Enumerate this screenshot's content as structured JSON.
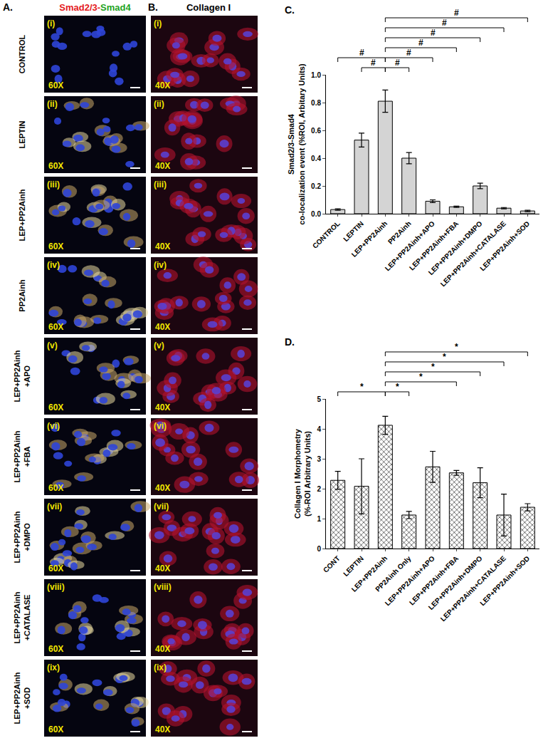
{
  "image_panels": {
    "A": {
      "label": "A.",
      "title": [
        {
          "text": "Smad2/3-",
          "color": "#e41a1c"
        },
        {
          "text": "Smad4",
          "color": "#1fa31f"
        }
      ],
      "magnification": "60X"
    },
    "B": {
      "label": "B.",
      "title": "Collagen I",
      "magnification": "40X"
    },
    "rows": [
      {
        "numeral": "(i)",
        "label": [
          "CONTROL"
        ]
      },
      {
        "numeral": "(ii)",
        "label": [
          "LEPTIN"
        ]
      },
      {
        "numeral": "(iii)",
        "label": [
          "LEP+PP2Ainh"
        ]
      },
      {
        "numeral": "(iv)",
        "label": [
          "PP2Ainh"
        ]
      },
      {
        "numeral": "(v)",
        "label": [
          "LEP+PP2Ainh",
          "+APO"
        ]
      },
      {
        "numeral": "(vi)",
        "label": [
          "LEP+PP2Ainh",
          "+FBA"
        ]
      },
      {
        "numeral": "(vii)",
        "label": [
          "LEP+PP2Ainh",
          "+DMPO"
        ]
      },
      {
        "numeral": "(viii)",
        "label": [
          "LEP+PP2Ainh",
          "+CATALASE"
        ]
      },
      {
        "numeral": "(ix)",
        "label": [
          "LEP+PP2Ainh",
          "+SOD"
        ]
      }
    ]
  },
  "chart_data": [
    {
      "type": "bar",
      "panel_label": "C.",
      "ylabel": [
        "Smad2/3-Smad4",
        "co-localization event (%ROI, Arbitary Units)"
      ],
      "categories": [
        "CONTROL",
        "LEPTIN",
        "LEP+PP2Ainh",
        "PP2Ainh",
        "LEP+PP2Ainh+APO",
        "LEP+PP2Ainh+FBA",
        "LEP+PP2Ainh+DMPO",
        "LEP+PP2Ainh+CATALASE",
        "LEP+PP2Ainh+SOD"
      ],
      "values": [
        0.03,
        0.53,
        0.81,
        0.4,
        0.09,
        0.05,
        0.2,
        0.04,
        0.02
      ],
      "error": [
        0.005,
        0.05,
        0.08,
        0.04,
        0.01,
        0.005,
        0.02,
        0.005,
        0.005
      ],
      "color": "#d4d4d4",
      "ylim": [
        0,
        1.0
      ],
      "yticks": [
        {
          "value": 0,
          "label": "0.0"
        },
        0.2,
        0.4,
        0.6,
        0.8,
        {
          "value": 1.0,
          "label": "1.0"
        }
      ],
      "grid": false,
      "comparisons": [
        {
          "from": "CONTROL",
          "to": "LEP+PP2Ainh",
          "label": "#"
        },
        {
          "from": "LEPTIN",
          "to": "LEP+PP2Ainh",
          "label": "#"
        },
        {
          "from": "LEP+PP2Ainh",
          "to": "PP2Ainh",
          "label": "#"
        },
        {
          "from": "LEP+PP2Ainh",
          "to": "LEP+PP2Ainh+APO",
          "label": "#"
        },
        {
          "from": "LEP+PP2Ainh",
          "to": "LEP+PP2Ainh+FBA",
          "label": "#"
        },
        {
          "from": "LEP+PP2Ainh",
          "to": "LEP+PP2Ainh+DMPO",
          "label": "#"
        },
        {
          "from": "LEP+PP2Ainh",
          "to": "LEP+PP2Ainh+CATALASE",
          "label": "#"
        },
        {
          "from": "LEP+PP2Ainh",
          "to": "LEP+PP2Ainh+SOD",
          "label": "#"
        }
      ]
    },
    {
      "type": "bar",
      "panel_label": "D.",
      "ylabel": [
        "Collagen I Morphometry",
        "(%-ROI Arbitrary Units)"
      ],
      "categories": [
        "CONT",
        "LEPTIN",
        "LEP+PP2Ainh",
        "PP2Ainh Only",
        "LEP+PP2Ainh+APO",
        "LEP+PP2Ainh+FBA",
        "LEP+PP2Ainh+DMPO",
        "LEP+PP2Ainh+CATALASE",
        "LEP+PP2Ainh+SOD"
      ],
      "values": [
        2.28,
        2.08,
        4.12,
        1.12,
        2.73,
        2.53,
        2.2,
        1.12,
        1.38
      ],
      "error": [
        0.3,
        0.92,
        0.3,
        0.12,
        0.52,
        0.08,
        0.5,
        0.7,
        0.12
      ],
      "color": "#6e6e6e",
      "ylim": [
        0,
        5
      ],
      "yticks": [
        0,
        1,
        2,
        3,
        4,
        5
      ],
      "grid": false,
      "comparisons": [
        {
          "from": "CONT",
          "to": "LEP+PP2Ainh",
          "label": "*"
        },
        {
          "from": "LEP+PP2Ainh",
          "to": "PP2Ainh Only",
          "label": "*"
        },
        {
          "from": "LEP+PP2Ainh",
          "to": "LEP+PP2Ainh+FBA",
          "label": "*"
        },
        {
          "from": "LEP+PP2Ainh",
          "to": "LEP+PP2Ainh+DMPO",
          "label": "*"
        },
        {
          "from": "LEP+PP2Ainh",
          "to": "LEP+PP2Ainh+CATALASE",
          "label": "*"
        },
        {
          "from": "LEP+PP2Ainh",
          "to": "LEP+PP2Ainh+SOD",
          "label": "*"
        }
      ]
    }
  ]
}
